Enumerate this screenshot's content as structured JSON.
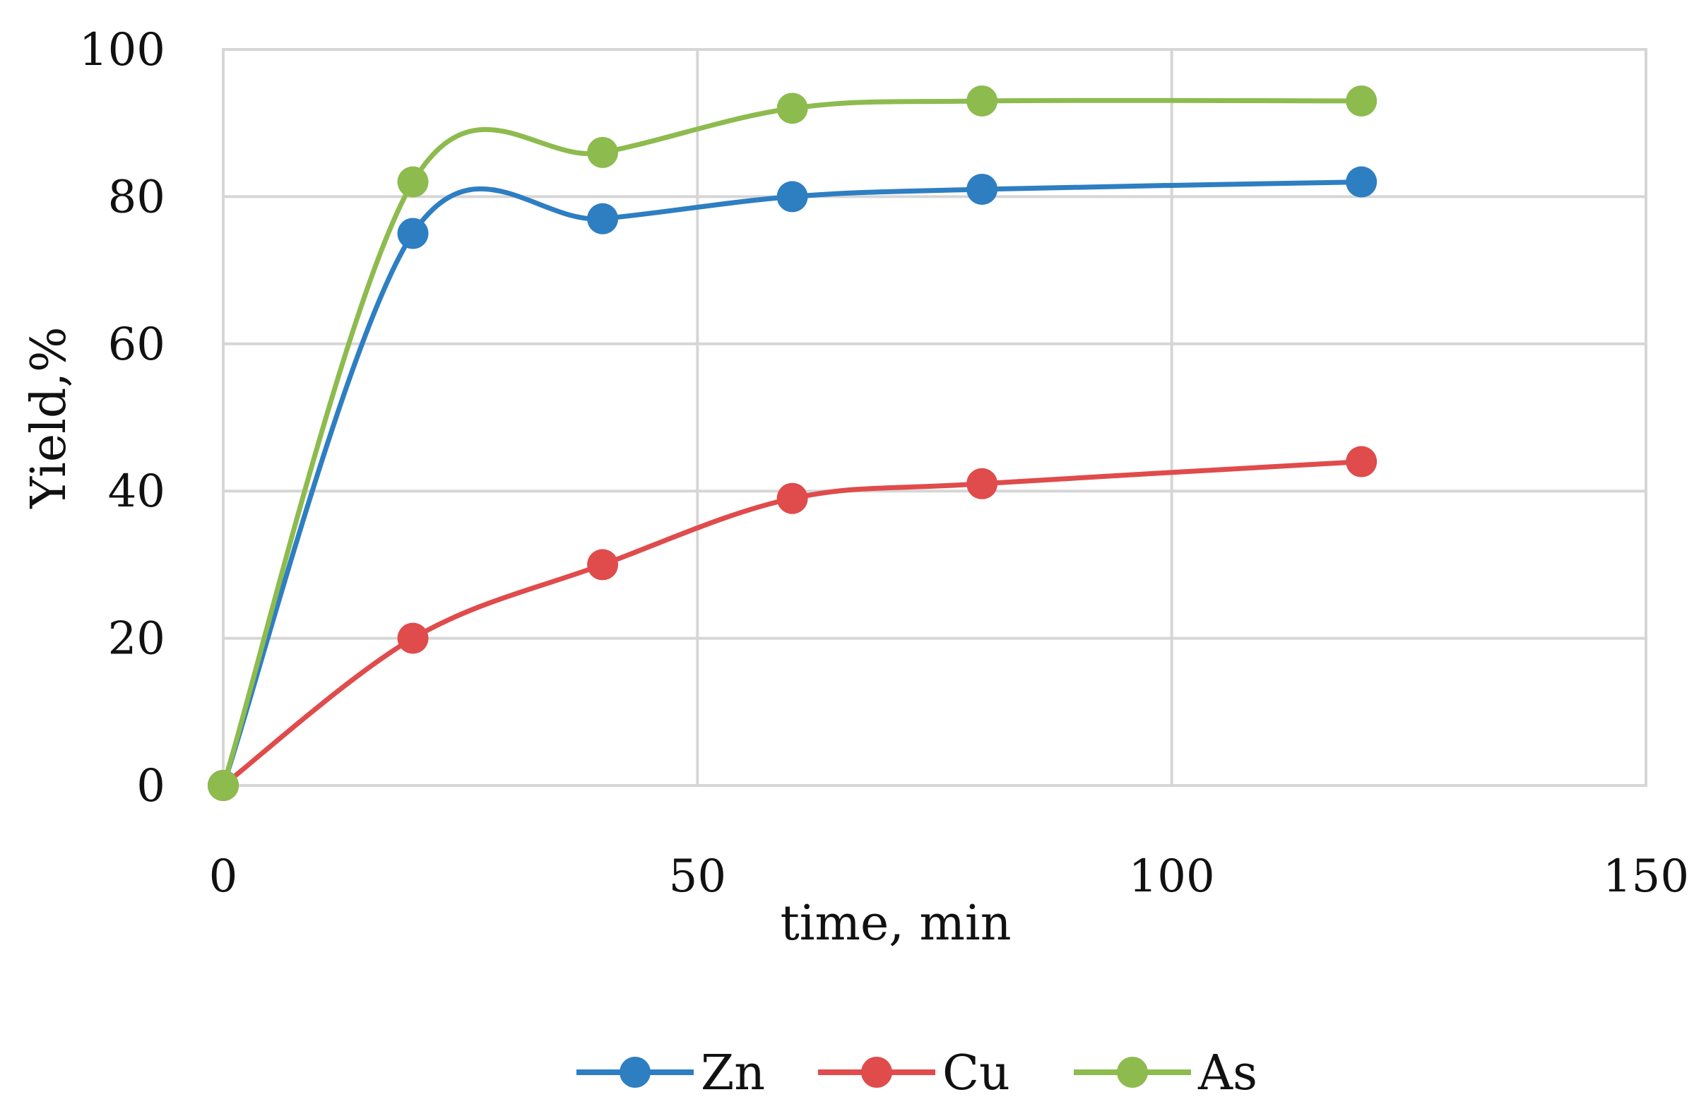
{
  "chart_data": {
    "type": "line",
    "title": "",
    "xlabel": "time, min",
    "ylabel": "Yield,%",
    "xlim": [
      0,
      150
    ],
    "ylim": [
      0,
      100
    ],
    "xticks": [
      0,
      50,
      100,
      150
    ],
    "yticks": [
      0,
      20,
      40,
      60,
      80,
      100
    ],
    "grid": true,
    "smooth": true,
    "legend_position": "bottom",
    "x": [
      0,
      20,
      40,
      60,
      80,
      120
    ],
    "series": [
      {
        "name": "Zn",
        "color": "#2e7ec2",
        "values": [
          0,
          75,
          77,
          80,
          81,
          82
        ]
      },
      {
        "name": "Cu",
        "color": "#e04b4b",
        "values": [
          0,
          20,
          30,
          39,
          41,
          44
        ]
      },
      {
        "name": "As",
        "color": "#8dbb4e",
        "values": [
          0,
          82,
          86,
          92,
          93,
          93
        ]
      }
    ]
  }
}
